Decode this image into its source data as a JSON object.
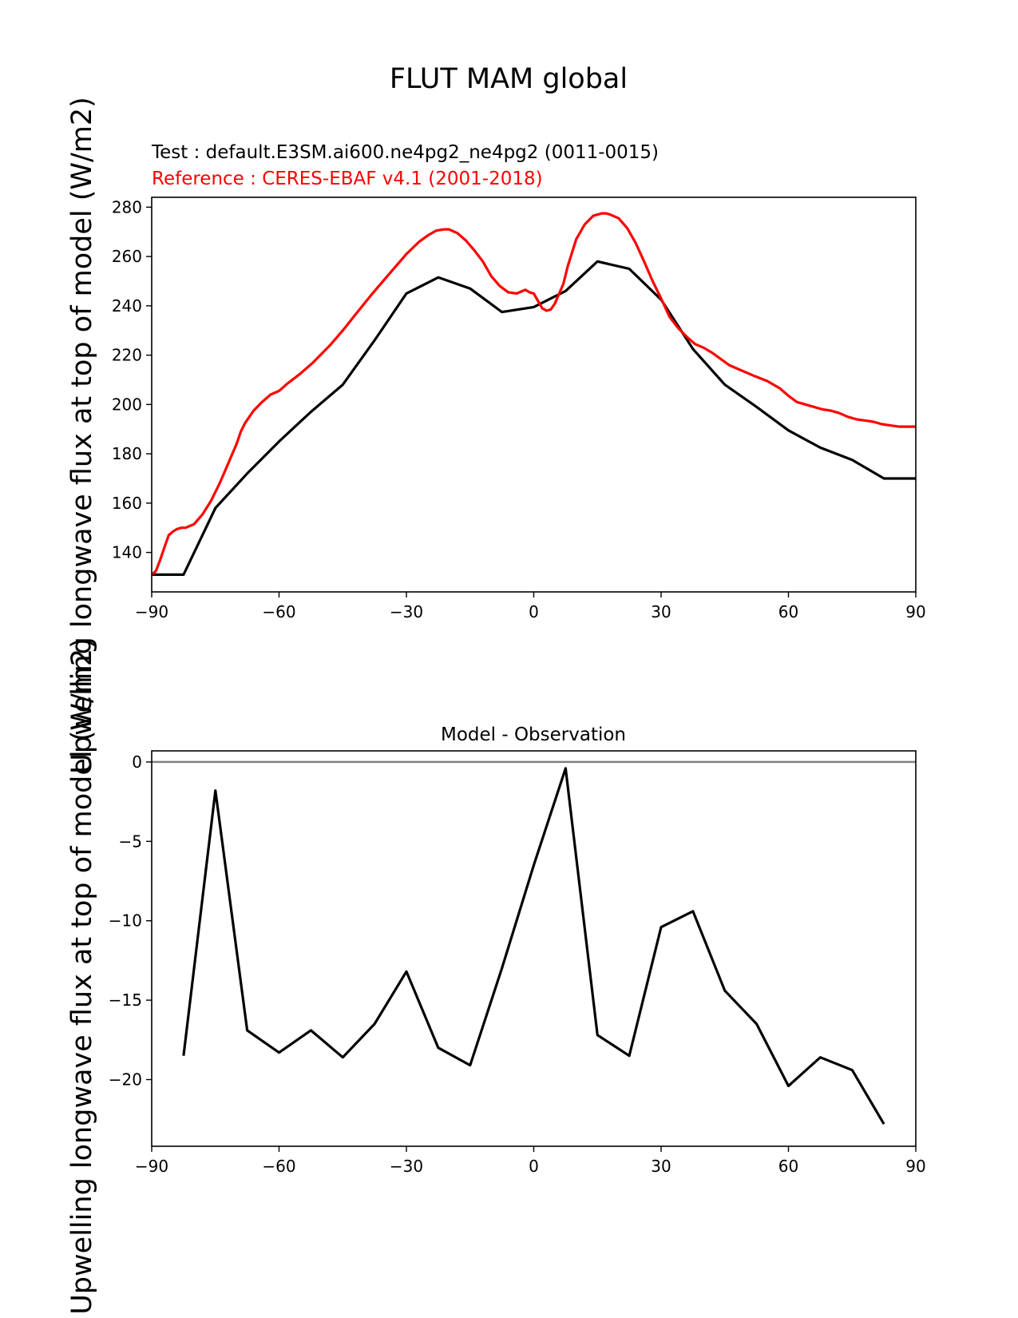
{
  "page_title": "FLUT MAM global",
  "ylabel": "Upwelling longwave flux at top of model (W/m2)",
  "chart_data": [
    {
      "type": "line",
      "title_test": "Test : default.E3SM.ai600.ne4pg2_ne4pg2 (0011-0015)",
      "title_reference": "Reference : CERES-EBAF v4.1 (2001-2018)",
      "xlabel": "",
      "ylabel": "Upwelling longwave flux at top of model (W/m2)",
      "xlim": [
        -90,
        90
      ],
      "ylim": [
        124,
        284
      ],
      "xticks": [
        -90,
        -60,
        -30,
        0,
        30,
        60,
        90
      ],
      "yticks": [
        140,
        160,
        180,
        200,
        220,
        240,
        260,
        280
      ],
      "grid": false,
      "colors": {
        "test": "#000000",
        "reference": "#ff0000"
      },
      "series": [
        {
          "role": "test",
          "x": [
            -90,
            -82.5,
            -75,
            -67.5,
            -60,
            -52.5,
            -45,
            -37.5,
            -30,
            -22.5,
            -15,
            -7.5,
            0,
            7.5,
            15,
            22.5,
            30,
            37.5,
            45,
            52.5,
            60,
            67.5,
            75,
            82.5,
            90
          ],
          "values": [
            131,
            131,
            158,
            172,
            185,
            197,
            208,
            226,
            245,
            251.5,
            247,
            237.5,
            239.5,
            246,
            258,
            255,
            242.5,
            222.5,
            208,
            199,
            189.5,
            182.5,
            177.5,
            170,
            170
          ]
        },
        {
          "role": "reference",
          "x": [
            -90,
            -89,
            -88,
            -87,
            -86,
            -85,
            -84,
            -83,
            -82,
            -80,
            -78,
            -76,
            -74,
            -72,
            -70,
            -69,
            -68,
            -67,
            -66,
            -64,
            -62,
            -60,
            -58,
            -55,
            -52,
            -48,
            -45,
            -42,
            -38,
            -34,
            -30,
            -27,
            -25,
            -23,
            -21,
            -20,
            -18,
            -16,
            -14,
            -12,
            -10,
            -8,
            -6,
            -4,
            -2,
            -1,
            0,
            1,
            2,
            3,
            4,
            5,
            6,
            7,
            8,
            10,
            12,
            14,
            16,
            17,
            18,
            20,
            22,
            24,
            26,
            28,
            30,
            32,
            34,
            36,
            38,
            40,
            42,
            44,
            46,
            48,
            50,
            52,
            55,
            58,
            60,
            62,
            65,
            68,
            70,
            72,
            74,
            76,
            78,
            80,
            82,
            84,
            86,
            88,
            90
          ],
          "values": [
            131,
            132.5,
            137,
            142,
            147,
            148.5,
            149.5,
            150,
            150,
            151.5,
            155.5,
            161,
            168,
            176,
            184,
            189,
            192.5,
            195,
            197.5,
            201,
            204,
            205.5,
            208.5,
            212.5,
            217,
            224,
            230,
            236.5,
            245,
            253,
            261,
            266,
            268.5,
            270.5,
            271,
            271,
            269.5,
            266.5,
            262.5,
            258,
            252,
            248,
            245.5,
            245,
            246.5,
            245.5,
            245,
            242,
            239,
            238,
            238.5,
            241,
            245,
            249,
            256,
            267,
            273,
            276.5,
            277.5,
            277.5,
            277,
            275.5,
            271.5,
            265.5,
            258,
            250,
            243,
            235.5,
            231,
            227.5,
            224.5,
            223,
            221,
            218.5,
            216,
            214.5,
            213,
            211.5,
            209.5,
            206.5,
            203.5,
            201,
            199.5,
            198,
            197.5,
            196.5,
            195,
            194,
            193.5,
            193,
            192,
            191.5,
            191,
            191,
            191
          ]
        }
      ]
    },
    {
      "type": "line",
      "title": "Model - Observation",
      "xlabel": "",
      "ylabel": "Upwelling longwave flux at top of model (W/m2)",
      "xlim": [
        -90,
        90
      ],
      "ylim": [
        -24.2,
        0.7
      ],
      "xticks": [
        -90,
        -60,
        -30,
        0,
        30,
        60,
        90
      ],
      "yticks": [
        0,
        -5,
        -10,
        -15,
        -20
      ],
      "ytick_labels": [
        "0",
        "−5",
        "−10",
        "−15",
        "−20"
      ],
      "grid": false,
      "zero_line": {
        "value": 0,
        "color": "#808080"
      },
      "colors": {
        "diff": "#000000"
      },
      "series": [
        {
          "role": "difference",
          "x": [
            -82.5,
            -75,
            -67.5,
            -60,
            -52.5,
            -45,
            -37.5,
            -30,
            -22.5,
            -15,
            -7.5,
            0,
            7.5,
            15,
            22.5,
            30,
            37.5,
            45,
            52.5,
            60,
            67.5,
            75,
            82.5
          ],
          "values": [
            -18.5,
            -1.8,
            -16.9,
            -18.3,
            -16.9,
            -18.6,
            -16.5,
            -13.2,
            -18.0,
            -19.1,
            -13.0,
            -6.5,
            -0.4,
            -17.2,
            -18.5,
            -10.4,
            -9.4,
            -14.4,
            -16.5,
            -20.4,
            -18.6,
            -19.4,
            -22.8
          ]
        }
      ]
    }
  ]
}
